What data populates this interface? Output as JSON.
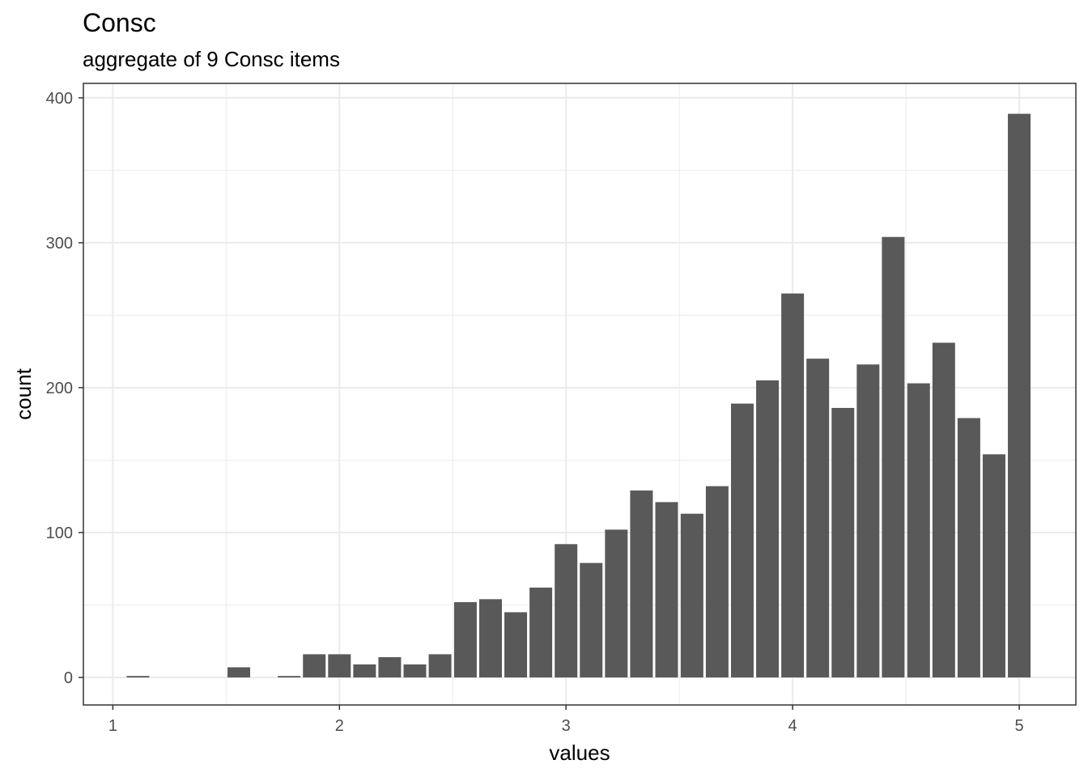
{
  "chart_data": {
    "type": "bar",
    "title": "Consc",
    "subtitle": "aggregate of 9 Consc items",
    "xlabel": "values",
    "ylabel": "count",
    "xlim": [
      0.87,
      5.25
    ],
    "ylim": [
      -19,
      410
    ],
    "x_ticks": [
      1,
      2,
      3,
      4,
      5
    ],
    "y_ticks": [
      0,
      100,
      200,
      300,
      400
    ],
    "y_minor_ticks": [
      50,
      150,
      250,
      350
    ],
    "x_minor_ticks": [
      1.5,
      2.5,
      3.5,
      4.5
    ],
    "grid": true,
    "bin_width": 0.1111,
    "x": [
      1.111,
      1.222,
      1.333,
      1.444,
      1.556,
      1.667,
      1.778,
      1.889,
      2.0,
      2.111,
      2.222,
      2.333,
      2.444,
      2.556,
      2.667,
      2.778,
      2.889,
      3.0,
      3.111,
      3.222,
      3.333,
      3.444,
      3.556,
      3.667,
      3.778,
      3.889,
      4.0,
      4.111,
      4.222,
      4.333,
      4.444,
      4.556,
      4.667,
      4.778,
      4.889,
      5.0
    ],
    "values": [
      1,
      0,
      0,
      0,
      7,
      0,
      1,
      16,
      16,
      9,
      14,
      9,
      16,
      52,
      54,
      45,
      62,
      92,
      79,
      102,
      129,
      121,
      113,
      132,
      189,
      205,
      265,
      220,
      186,
      216,
      304,
      203,
      231,
      179,
      154,
      389
    ],
    "bar_color": "#595959",
    "grid_color": "#ebebeb"
  }
}
